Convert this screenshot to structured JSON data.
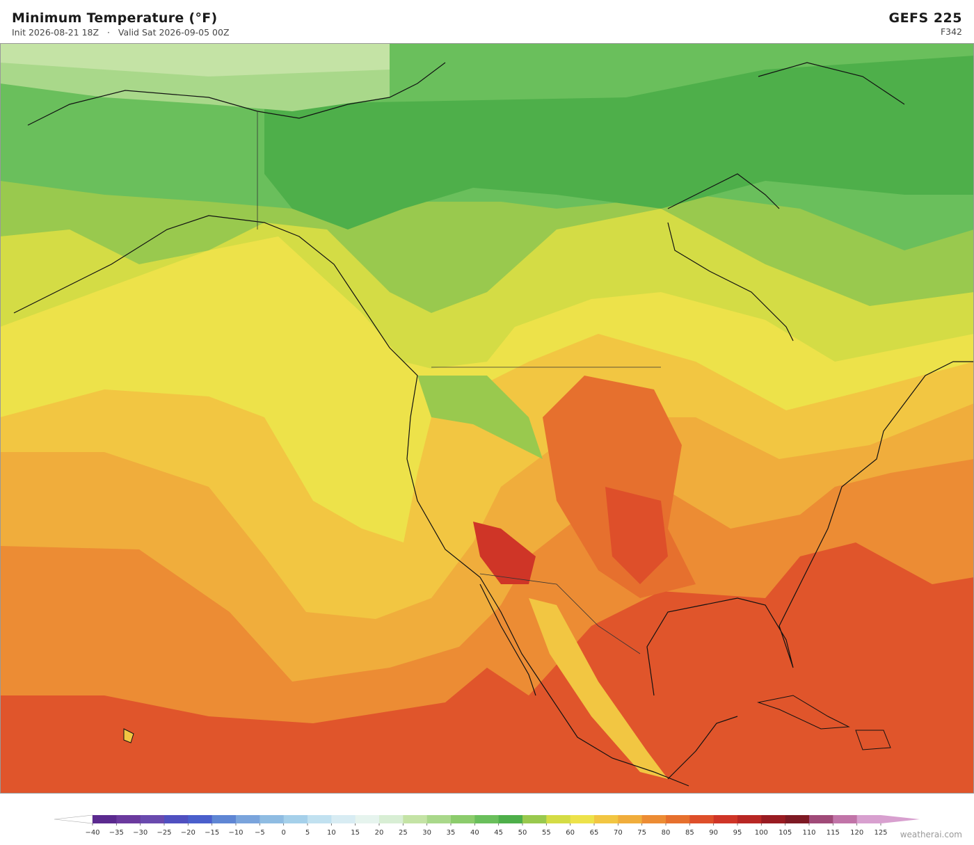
{
  "header": {
    "title": "Minimum Temperature  (°F)",
    "init": "Init 2026-08-21 18Z",
    "separator": "·",
    "valid": "Valid Sat 2026-09-05 00Z",
    "model": "GEFS  225",
    "forecast_hour": "F342"
  },
  "colorbar": {
    "ticks": [
      {
        "value": -40,
        "label": "−40"
      },
      {
        "value": -35,
        "label": "−35"
      },
      {
        "value": -30,
        "label": "−30"
      },
      {
        "value": -25,
        "label": "−25"
      },
      {
        "value": -20,
        "label": "−20"
      },
      {
        "value": -15,
        "label": "−15"
      },
      {
        "value": -10,
        "label": "−10"
      },
      {
        "value": -5,
        "label": "−5"
      },
      0,
      5,
      10,
      15,
      20,
      25,
      30,
      35,
      40,
      45,
      50,
      55,
      60,
      65,
      70,
      75,
      80,
      85,
      90,
      95,
      100,
      105,
      110,
      115,
      120,
      125
    ],
    "colors": [
      "#5b2a8f",
      "#6b3a9e",
      "#6a4aae",
      "#5050c0",
      "#4a5fcc",
      "#5f86d4",
      "#7aa4dc",
      "#8fbce2",
      "#a5d0ea",
      "#c1e1f0",
      "#d8ecf3",
      "#e6f4ee",
      "#d8eed4",
      "#c4e3a5",
      "#a9d88a",
      "#8ccc6c",
      "#6abf5c",
      "#4eaf4a",
      "#99c94e",
      "#d4dc45",
      "#ede24a",
      "#f2c642",
      "#f0ad3c",
      "#ec8c34",
      "#e6702e",
      "#de4f2a",
      "#cf3527",
      "#b82724",
      "#991c22",
      "#7e1a24",
      "#a04a78",
      "#c174a8",
      "#d8a0cf"
    ],
    "under_color": "#ffffff",
    "over_color": "#d8a0cf"
  },
  "footer": {
    "brand": "weatherai.com"
  }
}
